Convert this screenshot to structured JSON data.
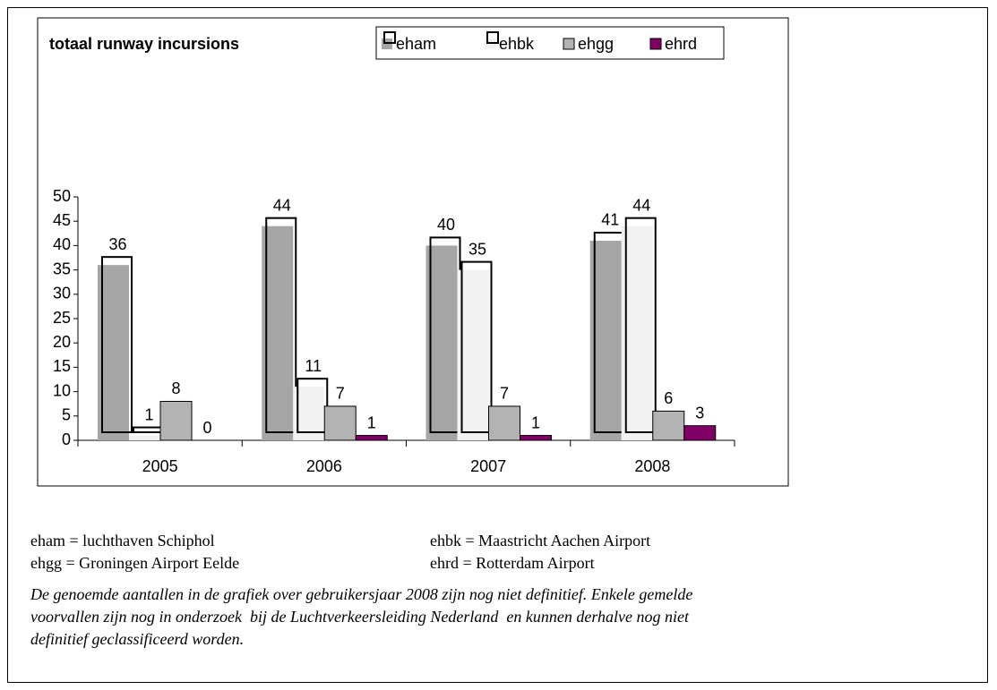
{
  "chart_data": {
    "type": "bar",
    "title": "totaal runway incursions",
    "categories": [
      "2005",
      "2006",
      "2007",
      "2008"
    ],
    "series": [
      {
        "name": "eham",
        "color": "#a6a6a6",
        "values": [
          36,
          44,
          40,
          41
        ]
      },
      {
        "name": "ehbk",
        "color": "#f2f2f2",
        "values": [
          1,
          11,
          35,
          44
        ]
      },
      {
        "name": "ehgg",
        "color": "#b3b3b3",
        "values": [
          8,
          7,
          7,
          6
        ]
      },
      {
        "name": "ehrd",
        "color": "#800066",
        "values": [
          0,
          1,
          1,
          3
        ]
      }
    ],
    "ylim": [
      0,
      50
    ],
    "yticks": [
      0,
      5,
      10,
      15,
      20,
      25,
      30,
      35,
      40,
      45,
      50
    ],
    "legend": "top",
    "grid": false
  },
  "notes": [
    [
      "eham = luchthaven Schiphol",
      "ehbk = Maastricht Aachen Airport"
    ],
    [
      "ehgg = Groningen Airport Eelde",
      "ehrd = Rotterdam Airport"
    ]
  ],
  "footnote": [
    "De genoemde aantallen in de grafiek over gebruikersjaar 2008 zijn nog niet definitief. Enkele gemelde",
    "voorvallen zijn nog in onderzoek  bij de Luchtverkeersleiding Nederland  en kunnen derhalve nog niet",
    "definitief geclassificeerd worden."
  ]
}
